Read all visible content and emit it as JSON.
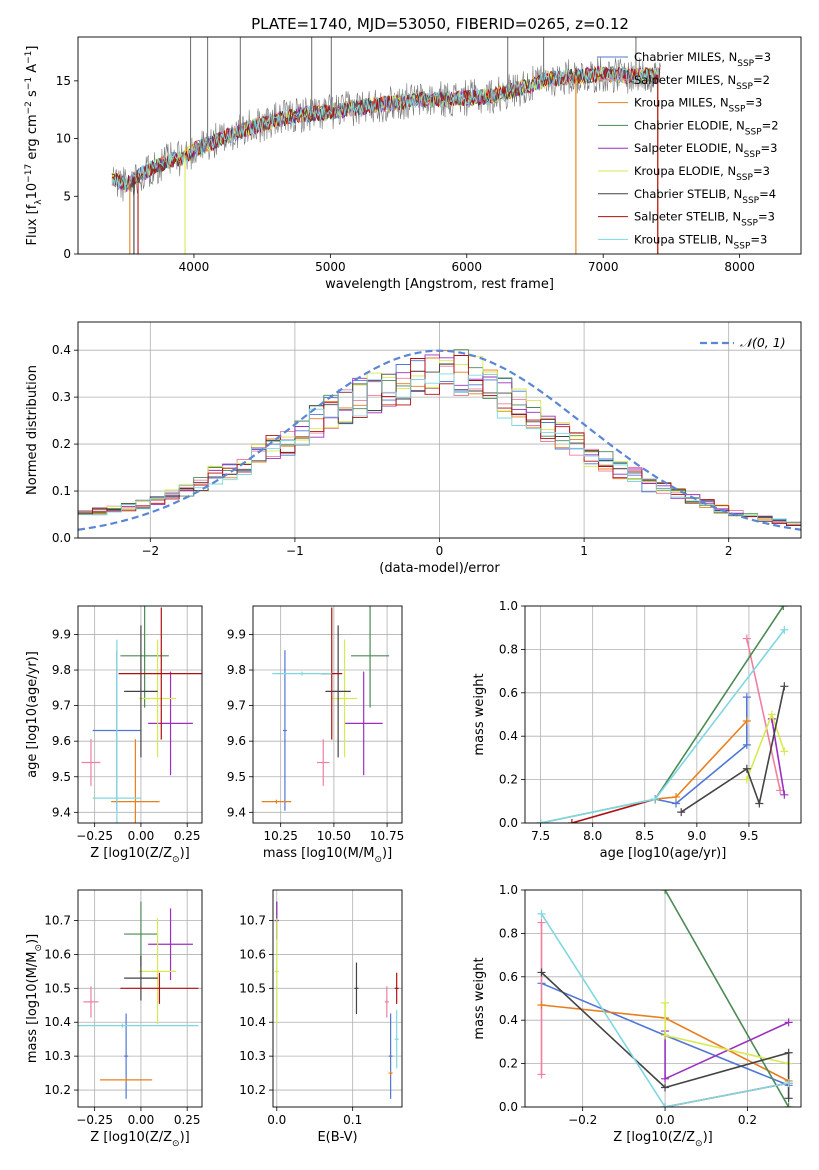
{
  "colors": {
    "chabrier_miles": "#4f77d6",
    "salpeter_miles": "#f07fa0",
    "kroupa_miles": "#e87f1f",
    "chabrier_elodie": "#4c8a55",
    "salpeter_elodie": "#9b30c0",
    "kroupa_elodie": "#d8ea52",
    "chabrier_stelib": "#444444",
    "salpeter_stelib": "#b01010",
    "kroupa_stelib": "#7fd8e0",
    "gauss": "#5b86d6"
  },
  "chart_data": [
    {
      "id": "spectrum",
      "type": "line",
      "title": "PLATE=1740, MJD=53050, FIBERID=0265, z=0.12",
      "xlabel": "wavelength [Angstrom, rest frame]",
      "ylabel": "Flux [f_λ10^-17 erg cm^-2 s^-1 A^-1]",
      "xlim": [
        3150,
        8450
      ],
      "ylim": [
        0,
        18.8
      ],
      "xticks": [
        4000,
        5000,
        6000,
        7000,
        8000
      ],
      "yticks": [
        0,
        5,
        10,
        15
      ],
      "grid": false,
      "legend_position": "top-right",
      "legend": [
        {
          "label": "Chabrier MILES, N_SSP=3",
          "color": "#4f77d6"
        },
        {
          "label": "Salpeter MILES, N_SSP=2",
          "color": "#f07fa0"
        },
        {
          "label": "Kroupa MILES, N_SSP=3",
          "color": "#e87f1f"
        },
        {
          "label": "Chabrier ELODIE, N_SSP=2",
          "color": "#4c8a55"
        },
        {
          "label": "Salpeter ELODIE, N_SSP=3",
          "color": "#9b30c0"
        },
        {
          "label": "Kroupa ELODIE, N_SSP=3",
          "color": "#d8ea52"
        },
        {
          "label": "Chabrier STELIB, N_SSP=4",
          "color": "#444444"
        },
        {
          "label": "Salpeter STELIB, N_SSP=3",
          "color": "#b01010"
        },
        {
          "label": "Kroupa STELIB, N_SSP=3",
          "color": "#7fd8e0"
        }
      ],
      "continuum": {
        "x": [
          3400,
          3500,
          3600,
          3700,
          3800,
          3900,
          4000,
          4200,
          4400,
          4600,
          4800,
          5000,
          5200,
          5400,
          5600,
          5800,
          6000,
          6200,
          6400,
          6600,
          6800,
          7000,
          7200,
          7400
        ],
        "y": [
          6.5,
          6.0,
          6.8,
          7.5,
          8.0,
          8.3,
          9.0,
          10.0,
          10.9,
          11.6,
          12.1,
          12.3,
          12.7,
          13.0,
          13.3,
          13.4,
          13.5,
          13.7,
          14.4,
          15.1,
          15.4,
          15.6,
          15.4,
          15.5
        ]
      }
    },
    {
      "id": "residual-histogram",
      "type": "bar",
      "xlabel": "(data-model)/error",
      "ylabel": "Normed distribution",
      "xlim": [
        -2.5,
        2.5
      ],
      "ylim": [
        0,
        0.46
      ],
      "xticks": [
        -2,
        -1,
        0,
        1,
        2
      ],
      "yticks": [
        0.0,
        0.1,
        0.2,
        0.3,
        0.4
      ],
      "grid": true,
      "legend_position": "top-right",
      "legend": [
        {
          "label": "𝒩(0, 1)",
          "color": "#5b86d6",
          "style": "dashed"
        }
      ],
      "bins": {
        "start": -2.5,
        "width": 0.1,
        "count": 50
      },
      "envelope": [
        0.05,
        0.055,
        0.06,
        0.065,
        0.07,
        0.08,
        0.09,
        0.1,
        0.11,
        0.13,
        0.14,
        0.15,
        0.17,
        0.19,
        0.2,
        0.22,
        0.24,
        0.26,
        0.27,
        0.29,
        0.3,
        0.31,
        0.32,
        0.33,
        0.34,
        0.35,
        0.34,
        0.33,
        0.31,
        0.29,
        0.27,
        0.25,
        0.23,
        0.21,
        0.19,
        0.17,
        0.16,
        0.14,
        0.13,
        0.11,
        0.1,
        0.09,
        0.08,
        0.07,
        0.06,
        0.05,
        0.045,
        0.04,
        0.035,
        0.03
      ]
    },
    {
      "id": "age-vs-Z",
      "type": "scatter",
      "xlabel": "Z [log10(Z/Z_⊙)]",
      "ylabel": "age [log10(age/yr)]",
      "xlim": [
        -0.34,
        0.33
      ],
      "ylim": [
        9.37,
        9.98
      ],
      "xticks": [
        -0.25,
        0.0,
        0.25
      ],
      "yticks": [
        9.4,
        9.5,
        9.6,
        9.7,
        9.8,
        9.9
      ],
      "grid": true,
      "points": [
        {
          "color": "#4f77d6",
          "x": -0.13,
          "xerr": 0.12,
          "y": 9.63,
          "yerr": 0.22
        },
        {
          "color": "#f07fa0",
          "x": -0.27,
          "xerr": 0.04,
          "y": 9.54,
          "yerr": 0.06
        },
        {
          "color": "#e87f1f",
          "x": -0.03,
          "xerr": 0.12,
          "y": 9.43,
          "yerr": 0.17
        },
        {
          "color": "#4c8a55",
          "x": 0.02,
          "xerr": 0.12,
          "y": 9.84,
          "yerr": 0.14
        },
        {
          "color": "#9b30c0",
          "x": 0.16,
          "xerr": 0.11,
          "y": 9.65,
          "yerr": 0.14
        },
        {
          "color": "#d8ea52",
          "x": 0.09,
          "xerr": 0.09,
          "y": 9.72,
          "yerr": 0.16
        },
        {
          "color": "#444444",
          "x": 0.0,
          "xerr": 0.08,
          "y": 9.74,
          "yerr": 0.18
        },
        {
          "color": "#b01010",
          "x": 0.11,
          "xerr": 0.22,
          "y": 9.79,
          "yerr": 0.18
        },
        {
          "color": "#7fd8e0",
          "x": -0.13,
          "xerr": 0.12,
          "y": 9.44,
          "yerr": 0.44
        }
      ]
    },
    {
      "id": "age-vs-mass",
      "type": "scatter",
      "xlabel": "mass [log10(M/M_⊙)]",
      "ylabel": "",
      "xlim": [
        10.12,
        10.82
      ],
      "ylim": [
        9.37,
        9.98
      ],
      "xticks": [
        10.25,
        10.5,
        10.75
      ],
      "yticks": [
        9.4,
        9.5,
        9.6,
        9.7,
        9.8,
        9.9
      ],
      "grid": true,
      "points": [
        {
          "color": "#4f77d6",
          "x": 10.27,
          "xerr": 0.0,
          "y": 9.63,
          "yerr": 0.22
        },
        {
          "color": "#f07fa0",
          "x": 10.45,
          "xerr": 0.02,
          "y": 9.54,
          "yerr": 0.06
        },
        {
          "color": "#e87f1f",
          "x": 10.23,
          "xerr": 0.06,
          "y": 9.43,
          "yerr": 0.0
        },
        {
          "color": "#4c8a55",
          "x": 10.67,
          "xerr": 0.08,
          "y": 9.84,
          "yerr": 0.14
        },
        {
          "color": "#9b30c0",
          "x": 10.64,
          "xerr": 0.08,
          "y": 9.65,
          "yerr": 0.14
        },
        {
          "color": "#d8ea52",
          "x": 10.55,
          "xerr": 0.05,
          "y": 9.72,
          "yerr": 0.16
        },
        {
          "color": "#444444",
          "x": 10.52,
          "xerr": 0.05,
          "y": 9.74,
          "yerr": 0.18
        },
        {
          "color": "#b01010",
          "x": 10.49,
          "xerr": 0.04,
          "y": 9.79,
          "yerr": 0.18
        },
        {
          "color": "#7fd8e0",
          "x": 10.35,
          "xerr": 0.13,
          "y": 9.79,
          "yerr": 0.0
        }
      ]
    },
    {
      "id": "mass-weight-vs-age",
      "type": "line",
      "xlabel": "age [log10(age/yr)]",
      "ylabel": "mass weight",
      "xlim": [
        7.35,
        10.0
      ],
      "ylim": [
        0,
        1.0
      ],
      "xticks": [
        7.5,
        8.0,
        8.5,
        9.0,
        9.5
      ],
      "yticks": [
        0.0,
        0.2,
        0.4,
        0.6,
        0.8,
        1.0
      ],
      "grid": true,
      "series": [
        {
          "color": "#4f77d6",
          "x": [
            8.6,
            8.8,
            9.48,
            9.48
          ],
          "y": [
            0.11,
            0.09,
            0.36,
            0.58
          ]
        },
        {
          "color": "#f07fa0",
          "x": [
            9.48,
            9.8
          ],
          "y": [
            0.85,
            0.15
          ]
        },
        {
          "color": "#e87f1f",
          "x": [
            8.6,
            8.8,
            9.48
          ],
          "y": [
            0.11,
            0.12,
            0.47
          ]
        },
        {
          "color": "#4c8a55",
          "x": [
            7.5,
            8.6,
            9.83
          ],
          "y": [
            0.0,
            0.11,
            1.0
          ]
        },
        {
          "color": "#9b30c0",
          "x": [
            9.72,
            9.84
          ],
          "y": [
            0.48,
            0.13
          ]
        },
        {
          "color": "#d8ea52",
          "x": [
            9.48,
            9.72,
            9.84
          ],
          "y": [
            0.2,
            0.5,
            0.33
          ]
        },
        {
          "color": "#444444",
          "x": [
            8.85,
            9.48,
            9.6,
            9.84
          ],
          "y": [
            0.05,
            0.25,
            0.09,
            0.63
          ]
        },
        {
          "color": "#b01010",
          "x": [
            7.8,
            8.6
          ],
          "y": [
            0.0,
            0.11
          ]
        },
        {
          "color": "#7fd8e0",
          "x": [
            7.5,
            8.6,
            9.84
          ],
          "y": [
            0.0,
            0.11,
            0.89
          ]
        }
      ]
    },
    {
      "id": "mass-vs-Z",
      "type": "scatter",
      "xlabel": "Z [log10(Z/Z_⊙)]",
      "ylabel": "mass [log10(M/M_⊙)]",
      "xlim": [
        -0.34,
        0.33
      ],
      "ylim": [
        10.15,
        10.79
      ],
      "xticks": [
        -0.25,
        0.0,
        0.25
      ],
      "yticks": [
        10.2,
        10.3,
        10.4,
        10.5,
        10.6,
        10.7
      ],
      "grid": true,
      "points": [
        {
          "color": "#4f77d6",
          "x": -0.08,
          "xerr": 0.0,
          "y": 10.3,
          "yerr": 0.12
        },
        {
          "color": "#f07fa0",
          "x": -0.27,
          "xerr": 0.03,
          "y": 10.46,
          "yerr": 0.04
        },
        {
          "color": "#e87f1f",
          "x": -0.08,
          "xerr": 0.13,
          "y": 10.23,
          "yerr": 0.0
        },
        {
          "color": "#4c8a55",
          "x": 0.0,
          "xerr": 0.08,
          "y": 10.66,
          "yerr": 0.09
        },
        {
          "color": "#9b30c0",
          "x": 0.16,
          "xerr": 0.11,
          "y": 10.63,
          "yerr": 0.1
        },
        {
          "color": "#d8ea52",
          "x": 0.09,
          "xerr": 0.09,
          "y": 10.55,
          "yerr": 0.15
        },
        {
          "color": "#444444",
          "x": 0.0,
          "xerr": 0.08,
          "y": 10.53,
          "yerr": 0.06
        },
        {
          "color": "#b01010",
          "x": 0.1,
          "xerr": 0.2,
          "y": 10.5,
          "yerr": 0.04
        },
        {
          "color": "#7fd8e0",
          "x": -0.1,
          "xerr": 0.4,
          "y": 10.39,
          "yerr": 0.0
        }
      ]
    },
    {
      "id": "mass-vs-EBV",
      "type": "scatter",
      "xlabel": "E(B-V)",
      "ylabel": "",
      "xlim": [
        -0.005,
        0.165
      ],
      "ylim": [
        10.15,
        10.79
      ],
      "xticks": [
        0.0,
        0.1
      ],
      "yticks": [
        10.2,
        10.3,
        10.4,
        10.5,
        10.6,
        10.7
      ],
      "grid": true,
      "points": [
        {
          "color": "#4f77d6",
          "x": 0.15,
          "xerr": 0.0,
          "y": 10.3,
          "yerr": 0.12
        },
        {
          "color": "#f07fa0",
          "x": 0.145,
          "xerr": 0.0,
          "y": 10.46,
          "yerr": 0.04
        },
        {
          "color": "#e87f1f",
          "x": 0.15,
          "xerr": 0.0,
          "y": 10.25,
          "yerr": 0.0
        },
        {
          "color": "#4c8a55",
          "x": 0.0,
          "xerr": 0.0,
          "y": 10.7,
          "yerr": 0.05
        },
        {
          "color": "#9b30c0",
          "x": 0.0,
          "xerr": 0.0,
          "y": 10.7,
          "yerr": 0.05
        },
        {
          "color": "#d8ea52",
          "x": 0.0,
          "xerr": 0.0,
          "y": 10.55,
          "yerr": 0.15
        },
        {
          "color": "#444444",
          "x": 0.105,
          "xerr": 0.0,
          "y": 10.5,
          "yerr": 0.07
        },
        {
          "color": "#b01010",
          "x": 0.158,
          "xerr": 0.0,
          "y": 10.5,
          "yerr": 0.04
        },
        {
          "color": "#7fd8e0",
          "x": 0.158,
          "xerr": 0.0,
          "y": 10.35,
          "yerr": 0.08
        }
      ]
    },
    {
      "id": "mass-weight-vs-Z",
      "type": "line",
      "xlabel": "Z [log10(Z/Z_⊙)]",
      "ylabel": "mass weight",
      "xlim": [
        -0.34,
        0.33
      ],
      "ylim": [
        0,
        1.0
      ],
      "xticks": [
        -0.2,
        0.0,
        0.2
      ],
      "yticks": [
        0.0,
        0.2,
        0.4,
        0.6,
        0.8,
        1.0
      ],
      "grid": true,
      "series": [
        {
          "color": "#4f77d6",
          "x": [
            -0.3,
            0.0,
            0.3
          ],
          "y": [
            0.57,
            0.33,
            0.1
          ]
        },
        {
          "color": "#f07fa0",
          "x": [
            -0.3,
            -0.3
          ],
          "y": [
            0.15,
            0.85
          ]
        },
        {
          "color": "#e87f1f",
          "x": [
            -0.3,
            0.0,
            0.3
          ],
          "y": [
            0.47,
            0.41,
            0.12
          ]
        },
        {
          "color": "#4c8a55",
          "x": [
            0.0,
            0.3
          ],
          "y": [
            1.0,
            0.0
          ]
        },
        {
          "color": "#9b30c0",
          "x": [
            0.0,
            0.0,
            0.3
          ],
          "y": [
            0.35,
            0.13,
            0.39
          ]
        },
        {
          "color": "#d8ea52",
          "x": [
            0.0,
            0.0,
            0.3
          ],
          "y": [
            0.48,
            0.33,
            0.2
          ]
        },
        {
          "color": "#444444",
          "x": [
            -0.3,
            0.0,
            0.3,
            0.3
          ],
          "y": [
            0.62,
            0.09,
            0.25,
            0.04
          ]
        },
        {
          "color": "#b01010",
          "x": [
            0.0,
            0.3
          ],
          "y": [
            0.0,
            0.11
          ]
        },
        {
          "color": "#7fd8e0",
          "x": [
            -0.3,
            0.0,
            0.3
          ],
          "y": [
            0.89,
            0.0,
            0.11
          ]
        }
      ]
    }
  ]
}
